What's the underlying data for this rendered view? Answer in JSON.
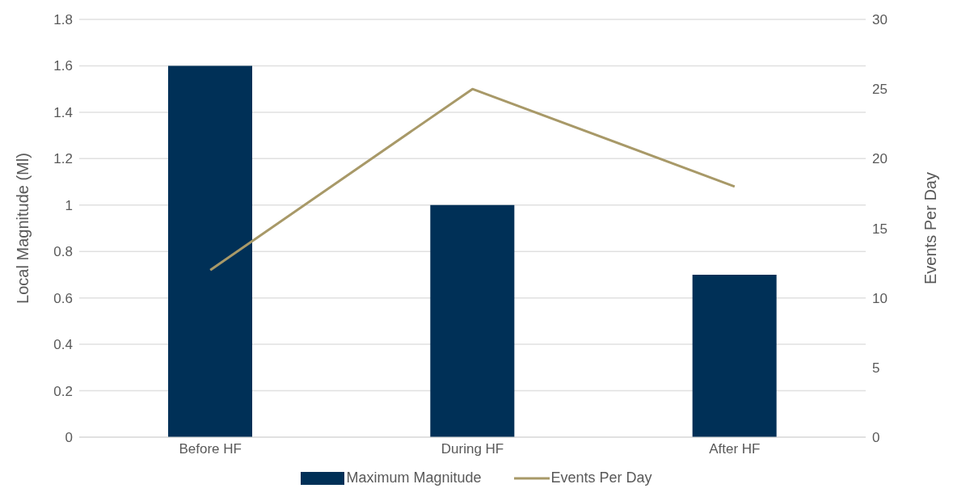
{
  "chart_data": {
    "type": "bar",
    "categories": [
      "Before HF",
      "During HF",
      "After HF"
    ],
    "ylabel": "Local Magnitude (Ml)",
    "y2label": "Events Per Day",
    "series": [
      {
        "name": "Maximum Magnitude",
        "color": "#003057",
        "values": [
          1.6,
          1.0,
          0.7
        ]
      },
      {
        "name": "Events Per Day",
        "type": "line",
        "axis": "y2",
        "color": "#a89968",
        "values": [
          12,
          25,
          18
        ]
      }
    ],
    "ylim": [
      0,
      1.8
    ],
    "yticks": [
      0,
      0.2,
      0.4,
      0.6,
      0.8,
      1,
      1.2,
      1.4,
      1.6,
      1.8
    ],
    "y2lim": [
      0,
      30
    ],
    "y2ticks": [
      0,
      5,
      10,
      15,
      20,
      25,
      30
    ],
    "grid": "y",
    "legend": "bottom",
    "marker": "none"
  }
}
